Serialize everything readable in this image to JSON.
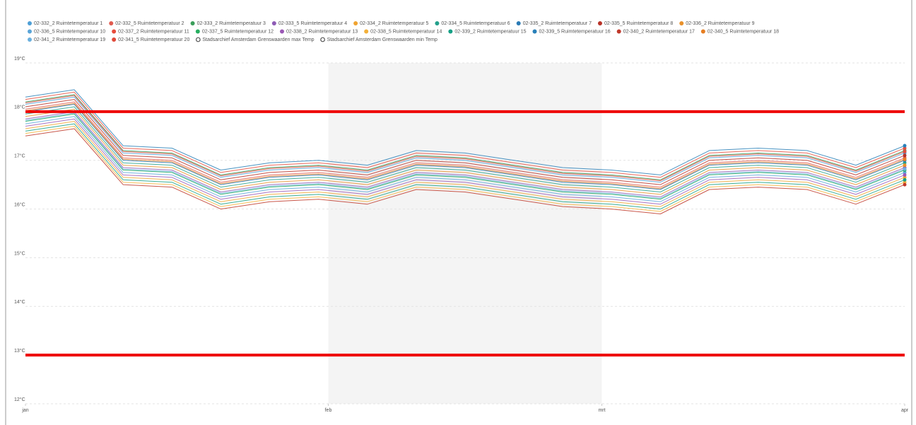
{
  "chart_data": {
    "type": "line",
    "x": [
      0,
      5,
      10,
      15,
      20,
      25,
      30,
      35,
      40,
      45,
      50,
      55,
      60,
      65,
      70,
      75,
      80,
      85,
      90
    ],
    "xlim": [
      0,
      90
    ],
    "xticks": [
      {
        "value": 0,
        "label": "jan"
      },
      {
        "value": 31,
        "label": "feb"
      },
      {
        "value": 59,
        "label": "mrt"
      },
      {
        "value": 90,
        "label": "apr"
      }
    ],
    "ylim": [
      12,
      19
    ],
    "yticks": [
      {
        "value": 12,
        "label": "12°C"
      },
      {
        "value": 13,
        "label": "13°C"
      },
      {
        "value": 14,
        "label": "14°C"
      },
      {
        "value": 15,
        "label": "15°C"
      },
      {
        "value": 16,
        "label": "16°C"
      },
      {
        "value": 17,
        "label": "17°C"
      },
      {
        "value": 18,
        "label": "18°C"
      },
      {
        "value": 19,
        "label": "19°C"
      }
    ],
    "grid": true,
    "series": [
      {
        "name": "02-332_2 Ruimtetemperatuur 1",
        "color": "#4e9fd6",
        "values": [
          18.15,
          18.3,
          17.15,
          17.1,
          16.65,
          16.8,
          16.85,
          16.75,
          17.05,
          17,
          16.85,
          16.7,
          16.65,
          16.55,
          17.05,
          17.1,
          17.05,
          16.75,
          17.15
        ]
      },
      {
        "name": "02-332_5 Ruimtetemperatuur 2",
        "color": "#e05a4e",
        "values": [
          18.05,
          18.2,
          17.05,
          17,
          16.55,
          16.7,
          16.75,
          16.65,
          16.95,
          16.9,
          16.75,
          16.6,
          16.55,
          16.45,
          16.95,
          17,
          16.95,
          16.65,
          17.05
        ]
      },
      {
        "name": "02-333_2 Ruimtetemperatuur 3",
        "color": "#3a9e5a",
        "values": [
          18.2,
          18.35,
          17.2,
          17.15,
          16.7,
          16.85,
          16.9,
          16.8,
          17.1,
          17.05,
          16.9,
          16.75,
          16.7,
          16.6,
          17.1,
          17.15,
          17.1,
          16.8,
          17.2
        ]
      },
      {
        "name": "02-333_5 Ruimtetemperatuur 4",
        "color": "#8e5bb5",
        "values": [
          17.85,
          18,
          16.85,
          16.8,
          16.35,
          16.5,
          16.55,
          16.45,
          16.75,
          16.7,
          16.55,
          16.4,
          16.35,
          16.25,
          16.75,
          16.8,
          16.75,
          16.45,
          16.85
        ]
      },
      {
        "name": "02-334_2 Ruimtetemperatuur 5",
        "color": "#f0a32f",
        "values": [
          17.65,
          17.8,
          16.65,
          16.6,
          16.15,
          16.3,
          16.35,
          16.25,
          16.55,
          16.5,
          16.35,
          16.2,
          16.15,
          16.05,
          16.55,
          16.6,
          16.55,
          16.25,
          16.65
        ]
      },
      {
        "name": "02-334_5 Ruimtetemperatuur 6",
        "color": "#23a08b",
        "values": [
          17.95,
          18.1,
          16.95,
          16.9,
          16.45,
          16.6,
          16.65,
          16.55,
          16.85,
          16.8,
          16.65,
          16.5,
          16.45,
          16.35,
          16.85,
          16.9,
          16.85,
          16.55,
          16.95
        ]
      },
      {
        "name": "02-335_2 Ruimtetemperatuur 7",
        "color": "#2a7ab5",
        "values": [
          18,
          18.15,
          17,
          16.95,
          16.5,
          16.65,
          16.7,
          16.6,
          16.9,
          16.85,
          16.7,
          16.55,
          16.5,
          16.4,
          16.9,
          16.95,
          16.9,
          16.6,
          17
        ]
      },
      {
        "name": "02-335_5 Ruimtetemperatuur 8",
        "color": "#b83227",
        "values": [
          18.1,
          18.25,
          17.1,
          17.05,
          16.6,
          16.75,
          16.8,
          16.7,
          17,
          16.95,
          16.8,
          16.65,
          16.6,
          16.5,
          17,
          17.05,
          17,
          16.7,
          17.1
        ]
      },
      {
        "name": "02-336_2 Ruimtetemperatuur 9",
        "color": "#e8902a",
        "values": [
          17.9,
          18.05,
          16.9,
          16.85,
          16.4,
          16.55,
          16.6,
          16.5,
          16.8,
          16.75,
          16.6,
          16.45,
          16.4,
          16.3,
          16.8,
          16.85,
          16.8,
          16.5,
          16.9
        ]
      },
      {
        "name": "02-336_5 Ruimtetemperatuur 10",
        "color": "#5aa5d8",
        "values": [
          17.75,
          17.9,
          16.75,
          16.7,
          16.25,
          16.4,
          16.45,
          16.35,
          16.65,
          16.6,
          16.45,
          16.3,
          16.25,
          16.15,
          16.65,
          16.7,
          16.65,
          16.35,
          16.75
        ]
      },
      {
        "name": "02-337_2 Ruimtetemperatuur 11",
        "color": "#e74c3c",
        "values": [
          18.25,
          18.4,
          17.25,
          17.2,
          16.75,
          16.9,
          16.95,
          16.85,
          17.15,
          17.1,
          16.95,
          16.8,
          16.75,
          16.65,
          17.15,
          17.2,
          17.15,
          16.85,
          17.25
        ]
      },
      {
        "name": "02-337_5 Ruimtetemperatuur 12",
        "color": "#27ae60",
        "values": [
          17.8,
          17.95,
          16.8,
          16.75,
          16.3,
          16.45,
          16.5,
          16.4,
          16.7,
          16.65,
          16.5,
          16.35,
          16.3,
          16.2,
          16.7,
          16.75,
          16.7,
          16.4,
          16.8
        ]
      },
      {
        "name": "02-338_2 Ruimtetemperatuur 13",
        "color": "#9b59b6",
        "values": [
          17.7,
          17.85,
          16.7,
          16.65,
          16.2,
          16.35,
          16.4,
          16.3,
          16.6,
          16.55,
          16.4,
          16.25,
          16.2,
          16.1,
          16.6,
          16.65,
          16.6,
          16.3,
          16.7
        ]
      },
      {
        "name": "02-338_5 Ruimtetemperatuur 14",
        "color": "#f3b03a",
        "values": [
          17.55,
          17.7,
          16.55,
          16.5,
          16.05,
          16.2,
          16.25,
          16.15,
          16.45,
          16.4,
          16.25,
          16.1,
          16.05,
          15.95,
          16.45,
          16.5,
          16.45,
          16.15,
          16.55
        ]
      },
      {
        "name": "02-339_2 Ruimtetemperatuur 15",
        "color": "#16a085",
        "values": [
          17.6,
          17.75,
          16.6,
          16.55,
          16.1,
          16.25,
          16.3,
          16.2,
          16.5,
          16.45,
          16.3,
          16.15,
          16.1,
          16,
          16.5,
          16.55,
          16.5,
          16.2,
          16.6
        ]
      },
      {
        "name": "02-339_5 Ruimtetemperatuur 16",
        "color": "#2980b9",
        "values": [
          18.3,
          18.45,
          17.3,
          17.25,
          16.8,
          16.95,
          17,
          16.9,
          17.2,
          17.15,
          17,
          16.85,
          16.8,
          16.7,
          17.2,
          17.25,
          17.2,
          16.9,
          17.3
        ]
      },
      {
        "name": "02-340_2 Ruimtetemperatuur 17",
        "color": "#c0392b",
        "values": [
          17.5,
          17.65,
          16.5,
          16.45,
          16,
          16.15,
          16.2,
          16.1,
          16.4,
          16.35,
          16.2,
          16.05,
          16,
          15.9,
          16.4,
          16.45,
          16.4,
          16.1,
          16.5
        ]
      },
      {
        "name": "02-340_5 Ruimtetemperatuur 18",
        "color": "#e67e22",
        "values": [
          18.02,
          18.17,
          17.02,
          16.97,
          16.52,
          16.67,
          16.72,
          16.62,
          16.92,
          16.87,
          16.72,
          16.57,
          16.52,
          16.42,
          16.92,
          16.97,
          16.92,
          16.62,
          17.02
        ]
      },
      {
        "name": "02-341_2 Ruimtetemperatuur 19",
        "color": "#6ab0de",
        "values": [
          17.82,
          17.97,
          16.82,
          16.77,
          16.32,
          16.47,
          16.52,
          16.42,
          16.72,
          16.67,
          16.52,
          16.37,
          16.32,
          16.22,
          16.72,
          16.77,
          16.72,
          16.42,
          16.82
        ]
      },
      {
        "name": "02-341_5 Ruimtetemperatuur 20",
        "color": "#e04a3a",
        "values": [
          18.18,
          18.33,
          17.18,
          17.13,
          16.68,
          16.83,
          16.88,
          16.78,
          17.08,
          17.03,
          16.88,
          16.73,
          16.68,
          16.58,
          17.08,
          17.13,
          17.08,
          16.78,
          17.18
        ]
      },
      {
        "name": "Stadsarchief Amsterdam Grenswaarden max Temp",
        "color": "#ee0000",
        "threshold": true,
        "values": [
          18,
          18,
          18,
          18,
          18,
          18,
          18,
          18,
          18,
          18,
          18,
          18,
          18,
          18,
          18,
          18,
          18,
          18,
          18
        ]
      },
      {
        "name": "Stadsarchief Amsterdam Grenswaarden min Temp",
        "color": "#ee0000",
        "threshold": true,
        "values": [
          13,
          13,
          13,
          13,
          13,
          13,
          13,
          13,
          13,
          13,
          13,
          13,
          13,
          13,
          13,
          13,
          13,
          13,
          13
        ]
      }
    ]
  }
}
